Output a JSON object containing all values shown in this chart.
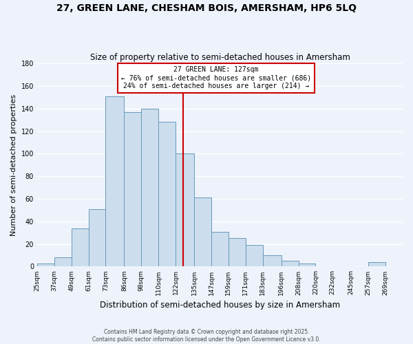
{
  "title": "27, GREEN LANE, CHESHAM BOIS, AMERSHAM, HP6 5LQ",
  "subtitle": "Size of property relative to semi-detached houses in Amersham",
  "xlabel": "Distribution of semi-detached houses by size in Amersham",
  "ylabel": "Number of semi-detached properties",
  "bar_color": "#ccdded",
  "bar_edge_color": "#6699bb",
  "background_color": "#eef2fb",
  "grid_color": "#ffffff",
  "bin_labels": [
    "25sqm",
    "37sqm",
    "49sqm",
    "61sqm",
    "73sqm",
    "86sqm",
    "98sqm",
    "110sqm",
    "122sqm",
    "135sqm",
    "147sqm",
    "159sqm",
    "171sqm",
    "183sqm",
    "196sqm",
    "208sqm",
    "220sqm",
    "232sqm",
    "245sqm",
    "257sqm",
    "269sqm"
  ],
  "bin_values": [
    3,
    8,
    34,
    51,
    151,
    137,
    140,
    128,
    100,
    61,
    31,
    25,
    19,
    10,
    5,
    3,
    0,
    0,
    0,
    4,
    0
  ],
  "bin_edges": [
    25,
    37,
    49,
    61,
    73,
    86,
    98,
    110,
    122,
    135,
    147,
    159,
    171,
    183,
    196,
    208,
    220,
    232,
    245,
    257,
    269,
    281
  ],
  "property_size": 127,
  "vline_color": "#cc0000",
  "annotation_line1": "27 GREEN LANE: 127sqm",
  "annotation_line2": "← 76% of semi-detached houses are smaller (686)",
  "annotation_line3": "24% of semi-detached houses are larger (214) →",
  "annotation_box_color": "white",
  "annotation_box_edge_color": "#cc0000",
  "ylim": [
    0,
    180
  ],
  "yticks": [
    0,
    20,
    40,
    60,
    80,
    100,
    120,
    140,
    160,
    180
  ],
  "footer_line1": "Contains HM Land Registry data © Crown copyright and database right 2025.",
  "footer_line2": "Contains public sector information licensed under the Open Government Licence v3.0."
}
